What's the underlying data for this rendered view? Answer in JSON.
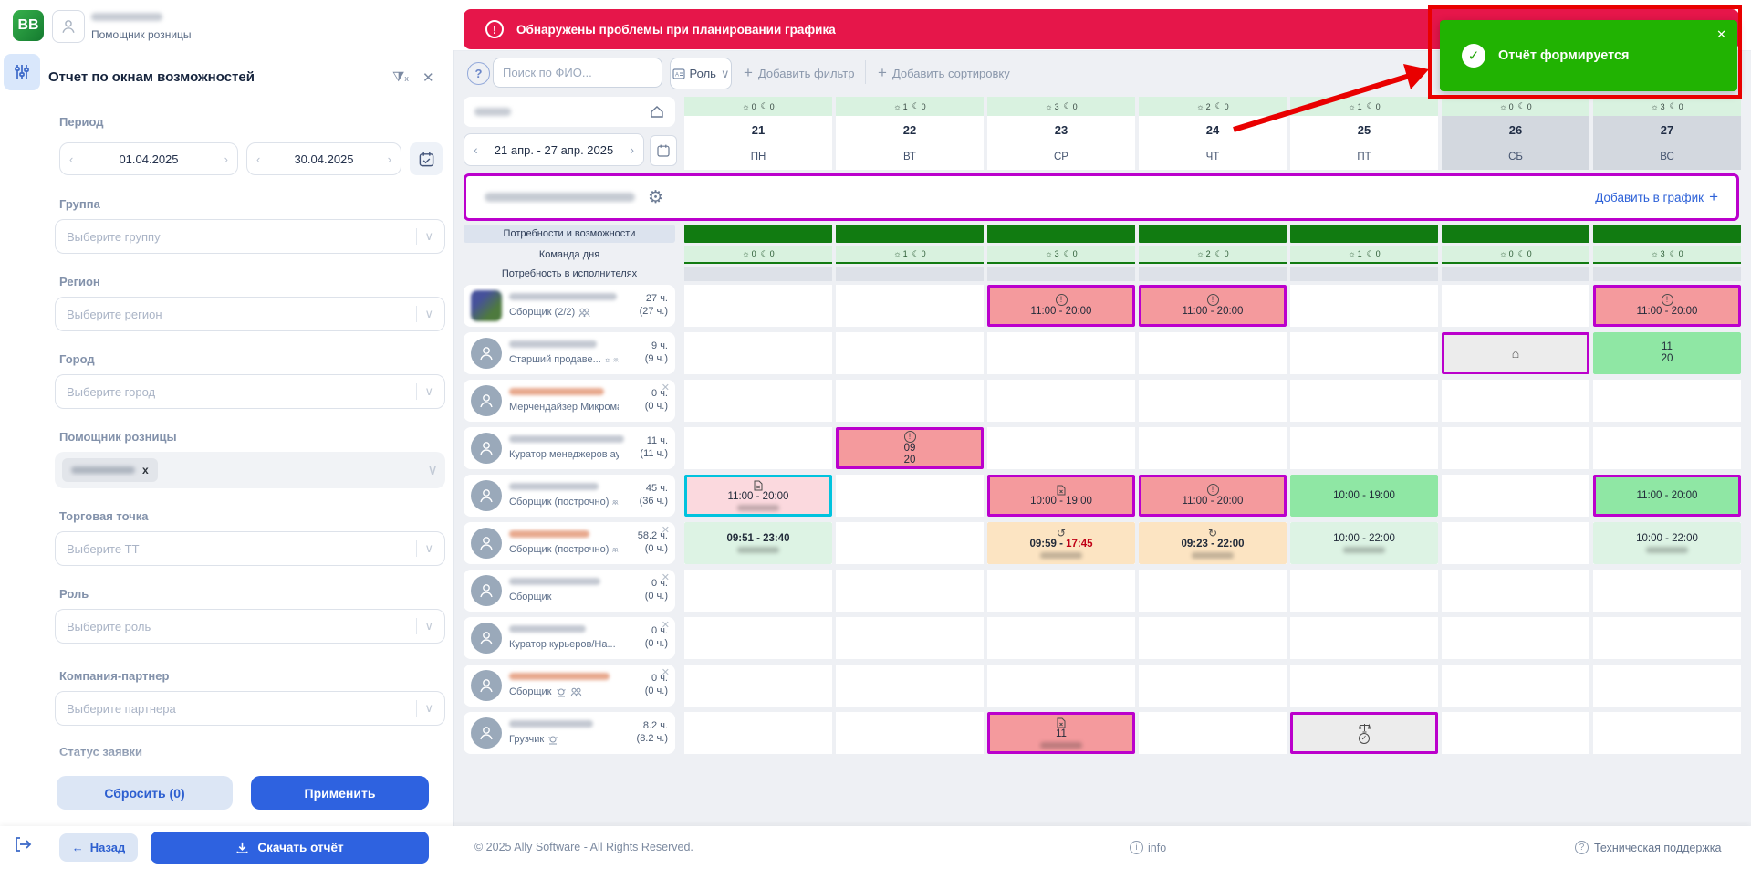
{
  "app": {
    "logo": "BB",
    "user_role": "Помощник розницы"
  },
  "alert_banner": {
    "text": "Обнаружены проблемы при планировании графика"
  },
  "toast": {
    "text": "Отчёт формируется",
    "close": "✕"
  },
  "sidebar": {
    "title": "Отчет по окнам возможностей",
    "period_label": "Период",
    "date_from": "01.04.2025",
    "date_to": "30.04.2025",
    "filters": [
      {
        "label": "Группа",
        "placeholder": "Выберите группу",
        "type": "select"
      },
      {
        "label": "Регион",
        "placeholder": "Выберите регион",
        "type": "select"
      },
      {
        "label": "Город",
        "placeholder": "Выберите город",
        "type": "select"
      },
      {
        "label": "Помощник розницы",
        "placeholder": "",
        "type": "chip"
      },
      {
        "label": "Торговая точка",
        "placeholder": "Выберите ТТ",
        "type": "select"
      },
      {
        "label": "Роль",
        "placeholder": "Выберите роль",
        "type": "select"
      },
      {
        "label": "Компания-партнер",
        "placeholder": "Выберите партнера",
        "type": "select"
      },
      {
        "label": "Статус заявки",
        "placeholder": "",
        "type": "label-only"
      }
    ],
    "reset_label": "Сбросить (0)",
    "apply_label": "Применить"
  },
  "toolbar": {
    "search_placeholder": "Поиск по ФИО...",
    "role_button": "Роль",
    "add_filter": "Добавить фильтр",
    "add_sort": "Добавить сортировку",
    "plus": "+"
  },
  "week": {
    "range": "21 апр. - 27 апр. 2025",
    "add_to_schedule": "Добавить в график"
  },
  "days": [
    {
      "num": "21",
      "dow": "ПН",
      "sun": "0",
      "moon": "0",
      "weekend": false
    },
    {
      "num": "22",
      "dow": "ВТ",
      "sun": "1",
      "moon": "0",
      "weekend": false
    },
    {
      "num": "23",
      "dow": "СР",
      "sun": "3",
      "moon": "0",
      "weekend": false
    },
    {
      "num": "24",
      "dow": "ЧТ",
      "sun": "2",
      "moon": "0",
      "weekend": false
    },
    {
      "num": "25",
      "dow": "ПТ",
      "sun": "1",
      "moon": "0",
      "weekend": false
    },
    {
      "num": "26",
      "dow": "СБ",
      "sun": "0",
      "moon": "0",
      "weekend": true
    },
    {
      "num": "27",
      "dow": "ВС",
      "sun": "3",
      "moon": "0",
      "weekend": true
    }
  ],
  "grid_rows": {
    "needs_label": "Потребности и возможности",
    "team_label": "Команда дня",
    "executors_label": "Потребность в исполнителях",
    "team_counts": [
      {
        "sun": "0",
        "moon": "0"
      },
      {
        "sun": "1",
        "moon": "0"
      },
      {
        "sun": "3",
        "moon": "0"
      },
      {
        "sun": "2",
        "moon": "0"
      },
      {
        "sun": "1",
        "moon": "0"
      },
      {
        "sun": "0",
        "moon": "0"
      },
      {
        "sun": "3",
        "moon": "0"
      }
    ]
  },
  "employees": [
    {
      "role": "Сборщик (2/2)",
      "icons": [
        "group"
      ],
      "hours": "27 ч.",
      "hours_paren": "(27 ч.)",
      "photo": true,
      "removable": false,
      "name_tone": "gray",
      "blur_w": 118
    },
    {
      "role": "Старший продаве...",
      "icons": [
        "bell",
        "group"
      ],
      "hours": "9 ч.",
      "hours_paren": "(9 ч.)",
      "photo": false,
      "removable": false,
      "name_tone": "gray",
      "blur_w": 96
    },
    {
      "role": "Мерчендайзер Микрома...",
      "icons": [],
      "hours": "0 ч.",
      "hours_paren": "(0 ч.)",
      "photo": false,
      "removable": true,
      "name_tone": "orange",
      "blur_w": 104
    },
    {
      "role": "Куратор менеджеров аут...",
      "icons": [],
      "hours": "11 ч.",
      "hours_paren": "(11 ч.)",
      "photo": false,
      "removable": false,
      "name_tone": "gray",
      "blur_w": 126
    },
    {
      "role": "Сборщик (построчно)",
      "icons": [
        "group"
      ],
      "hours": "45 ч.",
      "hours_paren": "(36 ч.)",
      "photo": false,
      "removable": false,
      "name_tone": "gray",
      "blur_w": 98
    },
    {
      "role": "Сборщик (построчно)",
      "icons": [
        "group"
      ],
      "hours": "58.2 ч.",
      "hours_paren": "(0 ч.)",
      "photo": false,
      "removable": true,
      "name_tone": "orange",
      "blur_w": 88
    },
    {
      "role": "Сборщик",
      "icons": [],
      "hours": "0 ч.",
      "hours_paren": "(0 ч.)",
      "photo": false,
      "removable": true,
      "name_tone": "gray",
      "blur_w": 100
    },
    {
      "role": "Куратор курьеров/На...",
      "icons": [
        "bell"
      ],
      "hours": "0 ч.",
      "hours_paren": "(0 ч.)",
      "photo": false,
      "removable": true,
      "name_tone": "gray",
      "blur_w": 84
    },
    {
      "role": "Сборщик",
      "icons": [
        "bell",
        "group"
      ],
      "hours": "0 ч.",
      "hours_paren": "(0 ч.)",
      "photo": false,
      "removable": true,
      "name_tone": "orange",
      "blur_w": 110
    },
    {
      "role": "Грузчик",
      "icons": [
        "bell"
      ],
      "hours": "8.2 ч.",
      "hours_paren": "(8.2 ч.)",
      "photo": false,
      "removable": false,
      "name_tone": "gray",
      "blur_w": 92
    }
  ],
  "schedule_cells": [
    {
      "row": 1,
      "col": 3,
      "style": "salmon",
      "border": "magenta",
      "icon": "warn",
      "lines": [
        "11:00 - 20:00"
      ],
      "blur": false
    },
    {
      "row": 1,
      "col": 4,
      "style": "salmon",
      "border": "magenta",
      "icon": "warn",
      "lines": [
        "11:00 - 20:00"
      ],
      "blur": false
    },
    {
      "row": 1,
      "col": 7,
      "style": "salmon",
      "border": "magenta",
      "icon": "warn",
      "lines": [
        "11:00 - 20:00"
      ],
      "blur": false
    },
    {
      "row": 2,
      "col": 6,
      "style": "gray",
      "border": "magenta",
      "icon": "home",
      "lines": [],
      "blur": false
    },
    {
      "row": 2,
      "col": 7,
      "style": "green",
      "border": "none",
      "icon": "",
      "lines": [
        "11",
        "20"
      ],
      "blur": false
    },
    {
      "row": 4,
      "col": 2,
      "style": "salmon",
      "border": "magenta",
      "icon": "warn",
      "lines": [
        "09",
        "20"
      ],
      "blur": false
    },
    {
      "row": 5,
      "col": 1,
      "style": "lightpink",
      "border": "cyan",
      "icon": "doc",
      "lines": [
        "11:00 - 20:00"
      ],
      "blur": true
    },
    {
      "row": 5,
      "col": 3,
      "style": "salmon",
      "border": "magenta",
      "icon": "doc",
      "lines": [
        "10:00 - 19:00"
      ],
      "blur": false
    },
    {
      "row": 5,
      "col": 4,
      "style": "salmon",
      "border": "magenta",
      "icon": "warn",
      "lines": [
        "11:00 - 20:00"
      ],
      "blur": false
    },
    {
      "row": 5,
      "col": 5,
      "style": "green",
      "border": "none",
      "icon": "",
      "lines": [
        "10:00 - 19:00"
      ],
      "blur": false
    },
    {
      "row": 5,
      "col": 7,
      "style": "green",
      "border": "magenta",
      "icon": "",
      "lines": [
        "11:00 - 20:00"
      ],
      "blur": false
    },
    {
      "row": 6,
      "col": 1,
      "style": "palegreen",
      "border": "none",
      "icon": "",
      "lines": [
        "09:51 - 23:40"
      ],
      "bold": true,
      "blur": true
    },
    {
      "row": 6,
      "col": 3,
      "style": "peach",
      "border": "none",
      "icon": "history",
      "lines": [
        "09:59 - 17:45"
      ],
      "bold": true,
      "red_suffix": "17:45",
      "blur": true
    },
    {
      "row": 6,
      "col": 4,
      "style": "peach",
      "border": "none",
      "icon": "redo",
      "lines": [
        "09:23 - 22:00"
      ],
      "bold": true,
      "blur": true
    },
    {
      "row": 6,
      "col": 5,
      "style": "palegreen",
      "border": "none",
      "icon": "",
      "lines": [
        "10:00 - 22:00"
      ],
      "blur": true
    },
    {
      "row": 6,
      "col": 7,
      "style": "palegreen",
      "border": "none",
      "icon": "",
      "lines": [
        "10:00 - 22:00"
      ],
      "blur": true
    },
    {
      "row": 10,
      "col": 3,
      "style": "salmon",
      "border": "magenta",
      "icon": "doc",
      "lines": [
        "11"
      ],
      "blur": true
    },
    {
      "row": 10,
      "col": 5,
      "style": "gray",
      "border": "magenta",
      "icon": "scales",
      "icon2": "check",
      "lines": [],
      "blur": false
    }
  ],
  "footer": {
    "back": "Назад",
    "download": "Скачать отчёт",
    "copyright": "© 2025 Ally Software - All Rights Reserved.",
    "info": "info",
    "support": "Техническая поддержка"
  },
  "colors": {
    "accent_blue": "#2e62e0",
    "banner_red": "#e6164a",
    "toast_green": "#21b302",
    "magenta_border": "#bb00cc",
    "cyan_border": "#00c3de",
    "dark_green_bar": "#117b11"
  }
}
